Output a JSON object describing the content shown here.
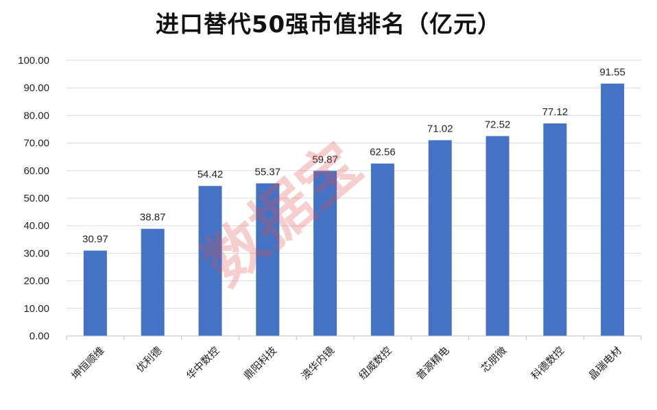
{
  "chart_data": {
    "type": "bar",
    "title": "进口替代50强市值排名（亿元）",
    "categories": [
      "坤恒顺维",
      "优利德",
      "华中数控",
      "鼎阳科技",
      "澳华内镜",
      "纽威数控",
      "普源精电",
      "芯朋微",
      "科德数控",
      "晶瑞电材"
    ],
    "values": [
      30.97,
      38.87,
      54.42,
      55.37,
      59.87,
      62.56,
      71.02,
      72.52,
      77.12,
      91.55
    ],
    "value_labels": [
      "30.97",
      "38.87",
      "54.42",
      "55.37",
      "59.87",
      "62.56",
      "71.02",
      "72.52",
      "77.12",
      "91.55"
    ],
    "y_ticks": [
      "0.00",
      "10.00",
      "20.00",
      "30.00",
      "40.00",
      "50.00",
      "60.00",
      "70.00",
      "80.00",
      "90.00",
      "100.00"
    ],
    "ylim": [
      0,
      100
    ],
    "grid": true,
    "legend": "none",
    "bar_color": "#4472C4",
    "grid_color": "#d9d9d9"
  },
  "watermark": {
    "text": "数据宝",
    "color": "#e25050"
  }
}
